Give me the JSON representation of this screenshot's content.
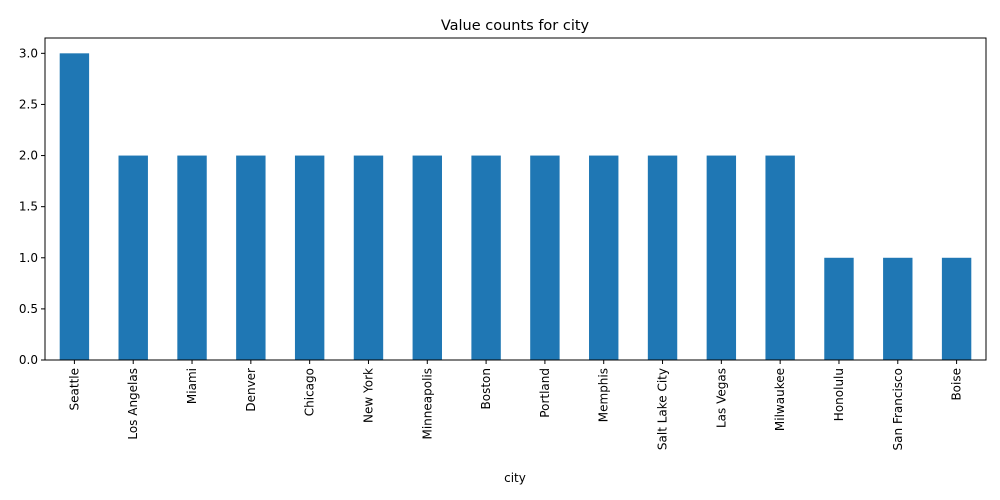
{
  "chart_data": {
    "type": "bar",
    "title": "Value counts for city",
    "xlabel": "city",
    "ylabel": "",
    "categories": [
      "Seattle",
      "Los Angelas",
      "Miami",
      "Denver",
      "Chicago",
      "New York",
      "Minneapolis",
      "Boston",
      "Portland",
      "Memphis",
      "Salt Lake City",
      "Las Vegas",
      "Milwaukee",
      "Honolulu",
      "San Francisco",
      "Boise"
    ],
    "values": [
      3,
      2,
      2,
      2,
      2,
      2,
      2,
      2,
      2,
      2,
      2,
      2,
      2,
      1,
      1,
      1
    ],
    "ylim": [
      0,
      3.15
    ],
    "yticks": [
      "0.0",
      "0.5",
      "1.0",
      "1.5",
      "2.0",
      "2.5",
      "3.0"
    ],
    "bar_color": "#1f77b4",
    "grid": false,
    "legend": "none"
  }
}
